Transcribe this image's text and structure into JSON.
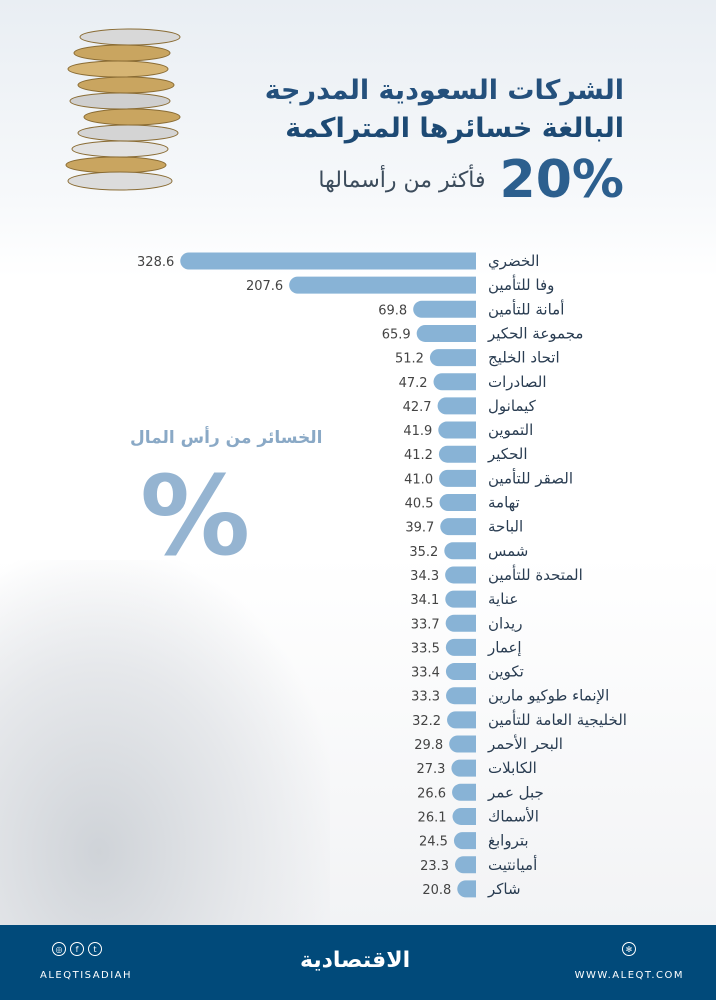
{
  "header": {
    "line1": "الشركات السعودية المدرجة",
    "line2": "البالغة خسائرها المتراكمة",
    "percent": "20%",
    "line3": "فأكثر من رأسمالها"
  },
  "side": {
    "subtitle": "الخسائر من رأس المال",
    "symbol": "%"
  },
  "colors": {
    "bar": "#88b3d6",
    "title": "#24507c",
    "footer": "#014a7a"
  },
  "chart_data": {
    "type": "bar",
    "orientation": "horizontal",
    "unit": "%",
    "categories": [
      "الخضري",
      "وفا للتأمين",
      "أمانة للتأمين",
      "مجموعة الحكير",
      "اتحاد الخليج",
      "الصادرات",
      "كيمانول",
      "التموين",
      "الحكير",
      "الصقر للتأمين",
      "تهامة",
      "الباحة",
      "شمس",
      "المتحدة للتأمين",
      "عناية",
      "ريدان",
      "إعمار",
      "تكوين",
      "الإنماء طوكيو مارين",
      "الخليجية العامة للتأمين",
      "البحر الأحمر",
      "الكابلات",
      "جبل عمر",
      "الأسماك",
      "بتروابغ",
      "أميانتيت",
      "شاكر"
    ],
    "values": [
      328.6,
      207.6,
      69.8,
      65.9,
      51.2,
      47.2,
      42.7,
      41.9,
      41.2,
      41.0,
      40.5,
      39.7,
      35.2,
      34.3,
      34.1,
      33.7,
      33.5,
      33.4,
      33.3,
      32.2,
      29.8,
      27.3,
      26.6,
      26.1,
      24.5,
      23.3,
      20.8
    ],
    "labels": [
      "328.6",
      "207.6",
      "69.8",
      "65.9",
      "51.2",
      "47.2",
      "42.7",
      "41.9",
      "41.2",
      "41.0",
      "40.5",
      "39.7",
      "35.2",
      "34.3",
      "34.1",
      "33.7",
      "33.5",
      "33.4",
      "33.3",
      "32.2",
      "29.8",
      "27.3",
      "26.6",
      "26.1",
      "24.5",
      "23.3",
      "20.8"
    ],
    "grid": false
  },
  "footer": {
    "handle": "ALEQTISADIAH",
    "logo": "الاقتصادية",
    "website": "WWW.ALEQT.COM",
    "social_icons": [
      "instagram-icon",
      "facebook-icon",
      "twitter-icon"
    ],
    "web_icon": "globe-icon"
  }
}
